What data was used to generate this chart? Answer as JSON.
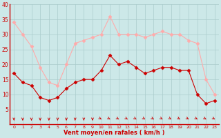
{
  "hours": [
    0,
    1,
    2,
    3,
    4,
    5,
    6,
    7,
    8,
    9,
    10,
    11,
    12,
    13,
    14,
    15,
    16,
    17,
    18,
    19,
    20,
    21,
    22,
    23
  ],
  "wind_mean": [
    17,
    14,
    13,
    9,
    8,
    9,
    12,
    14,
    15,
    15,
    18,
    23,
    20,
    21,
    19,
    17,
    18,
    19,
    19,
    18,
    18,
    10,
    7,
    8
  ],
  "wind_gust": [
    34,
    30,
    26,
    19,
    14,
    13,
    20,
    27,
    28,
    29,
    30,
    36,
    30,
    30,
    30,
    29,
    30,
    31,
    30,
    30,
    28,
    27,
    15,
    10
  ],
  "wind_angles": [
    270,
    270,
    270,
    270,
    270,
    270,
    270,
    270,
    270,
    270,
    315,
    315,
    315,
    315,
    315,
    315,
    315,
    315,
    315,
    315,
    315,
    315,
    315,
    315
  ],
  "ylim": [
    0,
    40
  ],
  "yticks": [
    5,
    10,
    15,
    20,
    25,
    30,
    35,
    40
  ],
  "bg_color": "#cce8e8",
  "grid_color": "#aacccc",
  "mean_color": "#cc0000",
  "gust_color": "#ffaaaa",
  "xlabel": "Vent moyen/en rafales ( km/h )",
  "xlabel_color": "#cc0000",
  "tick_color": "#cc0000",
  "spine_color": "#cc0000"
}
